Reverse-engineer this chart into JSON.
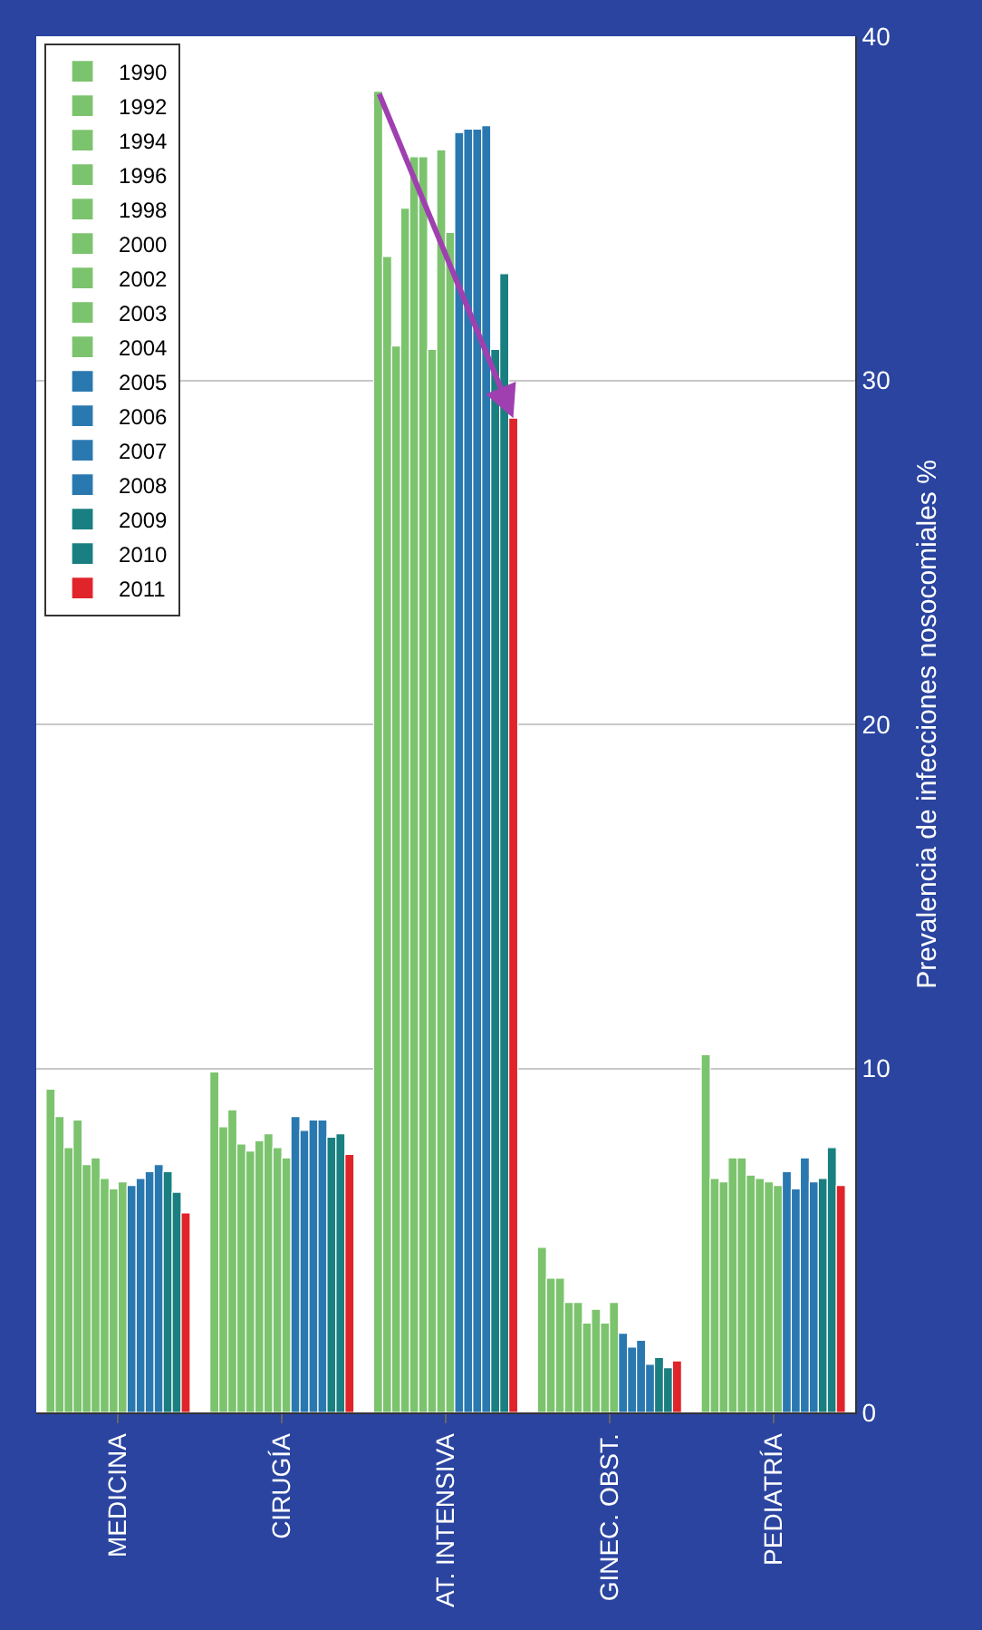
{
  "chart_data": {
    "type": "bar",
    "ylabel": "Prevalencia de infecciones nosocomiales %",
    "categories": [
      "MEDICINA",
      "CIRUGÍA",
      "AT. INTENSIVA",
      "GINEC. OBST.",
      "PEDIATRÍA"
    ],
    "ylim": [
      0,
      40
    ],
    "yticks": [
      0,
      10,
      20,
      30,
      40
    ],
    "grid": "y",
    "legend": "top left",
    "series": [
      {
        "name": "1990",
        "color": "#7cc36e",
        "values": [
          9.4,
          9.9,
          38.4,
          4.8,
          10.4
        ]
      },
      {
        "name": "1992",
        "color": "#7cc36e",
        "values": [
          8.6,
          8.3,
          33.6,
          3.9,
          6.8
        ]
      },
      {
        "name": "1994",
        "color": "#7cc36e",
        "values": [
          7.7,
          8.8,
          31.0,
          3.9,
          6.7
        ]
      },
      {
        "name": "1996",
        "color": "#7cc36e",
        "values": [
          8.5,
          7.8,
          35.0,
          3.2,
          7.4
        ]
      },
      {
        "name": "1998",
        "color": "#7cc36e",
        "values": [
          7.2,
          7.6,
          36.5,
          3.2,
          7.4
        ]
      },
      {
        "name": "2000",
        "color": "#7cc36e",
        "values": [
          7.4,
          7.9,
          36.5,
          2.6,
          6.9
        ]
      },
      {
        "name": "2002",
        "color": "#7cc36e",
        "values": [
          6.8,
          8.1,
          30.9,
          3.0,
          6.8
        ]
      },
      {
        "name": "2003",
        "color": "#7cc36e",
        "values": [
          6.5,
          7.7,
          36.7,
          2.6,
          6.7
        ]
      },
      {
        "name": "2004",
        "color": "#7cc36e",
        "values": [
          6.7,
          7.4,
          34.3,
          3.2,
          6.6
        ]
      },
      {
        "name": "2005",
        "color": "#2a78b0",
        "values": [
          6.6,
          8.6,
          37.2,
          2.3,
          7.0
        ]
      },
      {
        "name": "2006",
        "color": "#2a78b0",
        "values": [
          6.8,
          8.2,
          37.3,
          1.9,
          6.5
        ]
      },
      {
        "name": "2007",
        "color": "#2a78b0",
        "values": [
          7.0,
          8.5,
          37.3,
          2.1,
          7.4
        ]
      },
      {
        "name": "2008",
        "color": "#2a78b0",
        "values": [
          7.2,
          8.5,
          37.4,
          1.4,
          6.7
        ]
      },
      {
        "name": "2009",
        "color": "#1a7f80",
        "values": [
          7.0,
          8.0,
          30.9,
          1.6,
          6.8
        ]
      },
      {
        "name": "2010",
        "color": "#1a7f80",
        "values": [
          6.4,
          8.1,
          33.1,
          1.3,
          7.7
        ]
      },
      {
        "name": "2011",
        "color": "#e0242a",
        "values": [
          5.8,
          7.5,
          28.9,
          1.5,
          6.6
        ]
      }
    ]
  }
}
